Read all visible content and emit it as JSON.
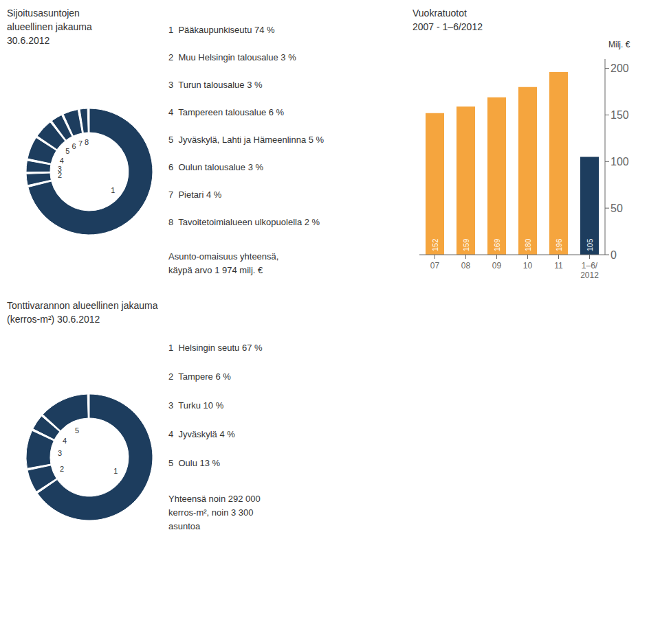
{
  "chart_data": [
    {
      "type": "pie",
      "title": "Sijoitusasuntojen\nalueellinen jakauma\n30.6.2012",
      "categories": [
        "1",
        "2",
        "3",
        "4",
        "5",
        "6",
        "7",
        "8"
      ],
      "values": [
        74,
        3,
        3,
        6,
        5,
        3,
        4,
        2
      ],
      "color": "#1d3d5e",
      "annotations": [
        "1  Pääkaupunkiseutu 74 %",
        "2  Muu Helsingin talousalue 3 %",
        "3  Turun talousalue 3 %",
        "4  Tampereen talousalue 6 %",
        "5  Jyväskylä, Lahti ja Hämeenlinna 5 %",
        "6  Oulun talousalue 3 %",
        "7  Pietari 4 %",
        "8  Tavoitetoimialueen ulkopuolella 2 %",
        "Asunto-omaisuus yhteensä,\nkäypä arvo 1 974 milj. €"
      ]
    },
    {
      "type": "bar",
      "title": "Vuokratuotot\n2007 - 1–6/2012",
      "ylabel": "Milj. €",
      "categories": [
        "07",
        "08",
        "09",
        "10",
        "11",
        "1–6/\n2012"
      ],
      "values": [
        152,
        159,
        169,
        180,
        196,
        105
      ],
      "colors": [
        "#f5a53e",
        "#f5a53e",
        "#f5a53e",
        "#f5a53e",
        "#f5a53e",
        "#1d3d5e"
      ],
      "ylim": [
        0,
        210
      ],
      "yticks": [
        0,
        50,
        100,
        150,
        200
      ],
      "data_labels": true,
      "grid": false
    },
    {
      "type": "pie",
      "title": "Tonttivarannon alueellinen jakauma\n(kerros-m²) 30.6.2012",
      "categories": [
        "1",
        "2",
        "3",
        "4",
        "5"
      ],
      "values": [
        67,
        6,
        10,
        4,
        13
      ],
      "color": "#1d3d5e",
      "annotations": [
        "1  Helsingin seutu 67 %",
        "2  Tampere 6 %",
        "3  Turku 10 %",
        "4  Jyväskylä 4 %",
        "5  Oulu 13 %",
        "Yhteensä noin 292 000\nkerros-m², noin 3 300\nasuntoa"
      ]
    }
  ]
}
